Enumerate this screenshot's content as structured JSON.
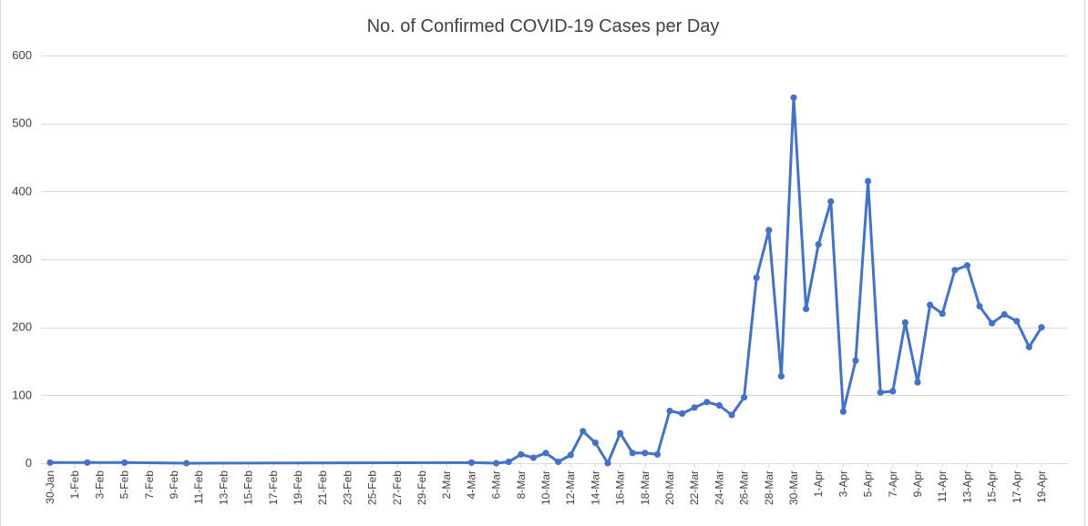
{
  "chart_data": {
    "type": "line",
    "title": "No. of Confirmed COVID-19 Cases per Day",
    "xlabel": "",
    "ylabel": "",
    "ylim": [
      0,
      600
    ],
    "yticks": [
      0,
      100,
      200,
      300,
      400,
      500,
      600
    ],
    "grid": true,
    "x_ticks": [
      "30-Jan",
      "1-Feb",
      "3-Feb",
      "5-Feb",
      "7-Feb",
      "9-Feb",
      "11-Feb",
      "13-Feb",
      "15-Feb",
      "17-Feb",
      "19-Feb",
      "21-Feb",
      "23-Feb",
      "25-Feb",
      "27-Feb",
      "29-Feb",
      "2-Mar",
      "4-Mar",
      "6-Mar",
      "8-Mar",
      "10-Mar",
      "12-Mar",
      "14-Mar",
      "16-Mar",
      "18-Mar",
      "20-Mar",
      "22-Mar",
      "24-Mar",
      "26-Mar",
      "28-Mar",
      "30-Mar",
      "1-Apr",
      "3-Apr",
      "5-Apr",
      "7-Apr",
      "9-Apr",
      "11-Apr",
      "13-Apr",
      "15-Apr",
      "17-Apr",
      "19-Apr"
    ],
    "series": [
      {
        "color": "#4472c4",
        "points": [
          {
            "x": "30-Jan",
            "y": 1
          },
          {
            "x": "2-Feb",
            "y": 1
          },
          {
            "x": "5-Feb",
            "y": 1
          },
          {
            "x": "10-Feb",
            "y": 0
          },
          {
            "x": "4-Mar",
            "y": 1
          },
          {
            "x": "6-Mar",
            "y": 0
          },
          {
            "x": "7-Mar",
            "y": 2
          },
          {
            "x": "8-Mar",
            "y": 13
          },
          {
            "x": "9-Mar",
            "y": 8
          },
          {
            "x": "10-Mar",
            "y": 15
          },
          {
            "x": "11-Mar",
            "y": 2
          },
          {
            "x": "12-Mar",
            "y": 12
          },
          {
            "x": "13-Mar",
            "y": 47
          },
          {
            "x": "14-Mar",
            "y": 30
          },
          {
            "x": "15-Mar",
            "y": 0
          },
          {
            "x": "16-Mar",
            "y": 44
          },
          {
            "x": "17-Mar",
            "y": 15
          },
          {
            "x": "18-Mar",
            "y": 15
          },
          {
            "x": "19-Mar",
            "y": 13
          },
          {
            "x": "20-Mar",
            "y": 77
          },
          {
            "x": "21-Mar",
            "y": 73
          },
          {
            "x": "22-Mar",
            "y": 82
          },
          {
            "x": "23-Mar",
            "y": 90
          },
          {
            "x": "24-Mar",
            "y": 85
          },
          {
            "x": "25-Mar",
            "y": 71
          },
          {
            "x": "26-Mar",
            "y": 97
          },
          {
            "x": "27-Mar",
            "y": 273
          },
          {
            "x": "28-Mar",
            "y": 343
          },
          {
            "x": "29-Mar",
            "y": 128
          },
          {
            "x": "30-Mar",
            "y": 538
          },
          {
            "x": "31-Mar",
            "y": 227
          },
          {
            "x": "1-Apr",
            "y": 322
          },
          {
            "x": "2-Apr",
            "y": 385
          },
          {
            "x": "3-Apr",
            "y": 76
          },
          {
            "x": "4-Apr",
            "y": 151
          },
          {
            "x": "5-Apr",
            "y": 415
          },
          {
            "x": "6-Apr",
            "y": 104
          },
          {
            "x": "7-Apr",
            "y": 106
          },
          {
            "x": "8-Apr",
            "y": 207
          },
          {
            "x": "9-Apr",
            "y": 119
          },
          {
            "x": "10-Apr",
            "y": 233
          },
          {
            "x": "11-Apr",
            "y": 220
          },
          {
            "x": "12-Apr",
            "y": 284
          },
          {
            "x": "13-Apr",
            "y": 291
          },
          {
            "x": "14-Apr",
            "y": 231
          },
          {
            "x": "15-Apr",
            "y": 206
          },
          {
            "x": "16-Apr",
            "y": 219
          },
          {
            "x": "17-Apr",
            "y": 209
          },
          {
            "x": "18-Apr",
            "y": 171
          },
          {
            "x": "19-Apr",
            "y": 200
          }
        ]
      }
    ]
  }
}
